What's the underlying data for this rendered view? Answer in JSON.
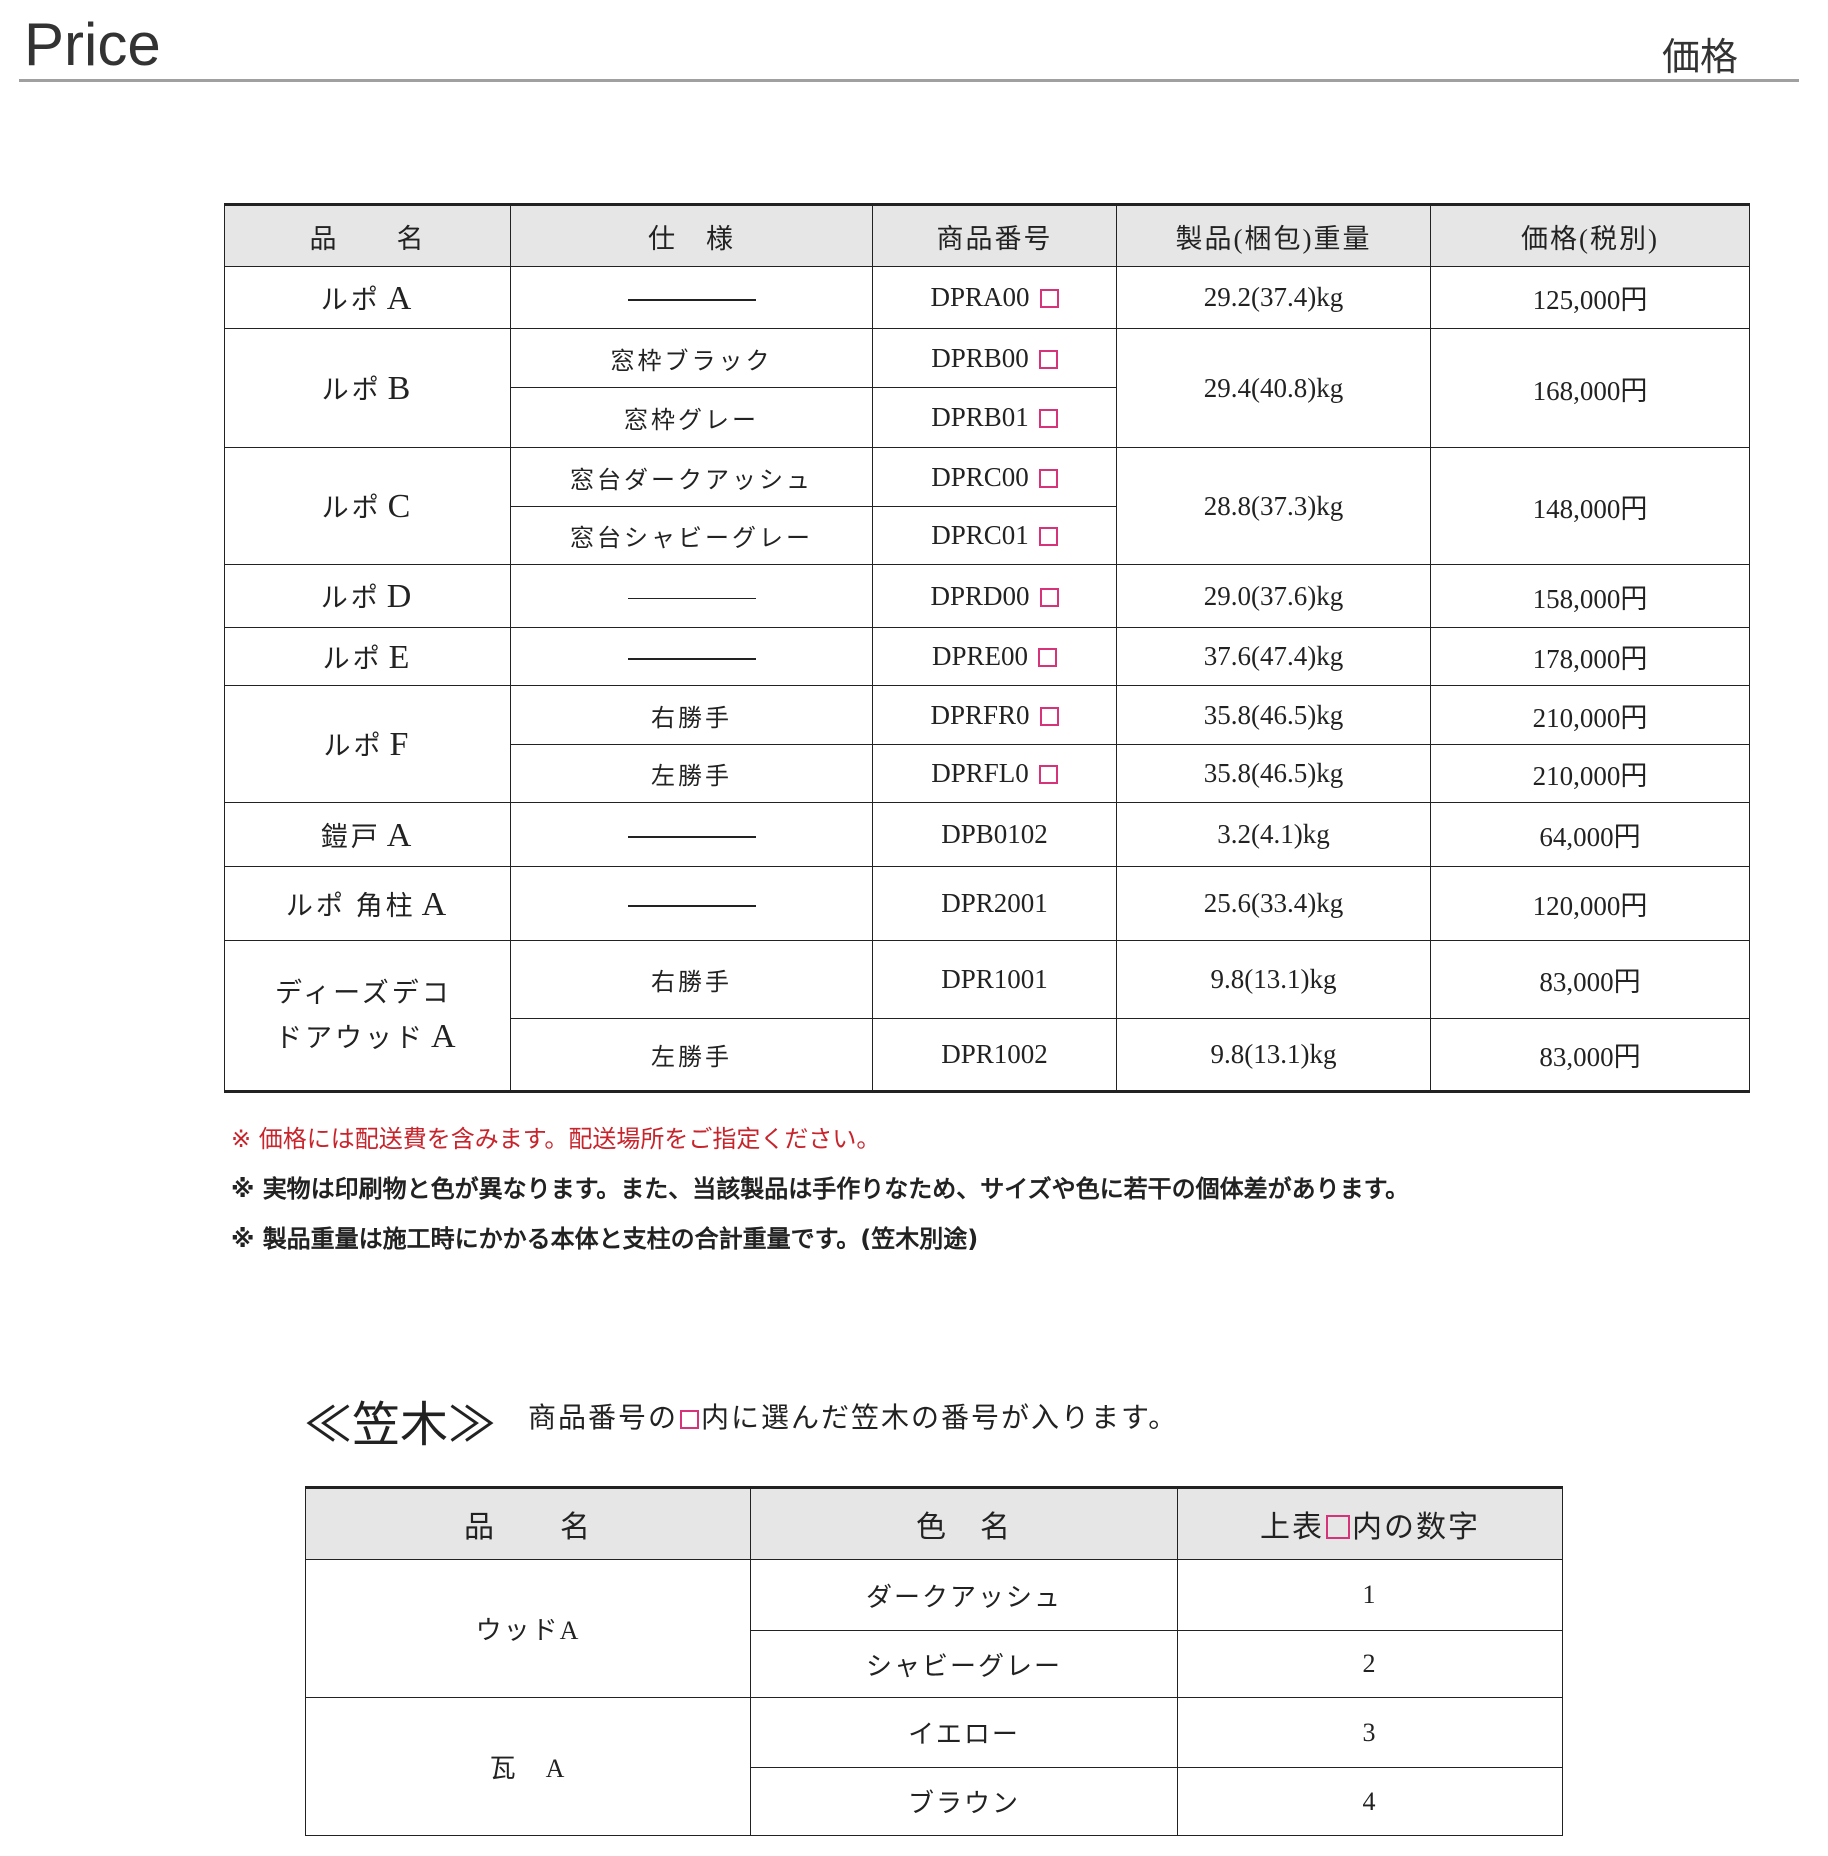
{
  "header": {
    "title": "Price",
    "title_jp": "価格"
  },
  "price_table": {
    "headers": [
      "品　　名",
      "仕　様",
      "商品番号",
      "製品(梱包)重量",
      "価格(税別)"
    ],
    "rows": [
      {
        "name": "ルポ",
        "letter": "A",
        "items": [
          {
            "spec": "",
            "code": "DPRA00",
            "box": true,
            "weight": "29.2(37.4)kg",
            "price": "125,000円"
          }
        ]
      },
      {
        "name": "ルポ",
        "letter": "B",
        "items": [
          {
            "spec": "窓枠ブラック",
            "code": "DPRB00",
            "box": true
          },
          {
            "spec": "窓枠グレー",
            "code": "DPRB01",
            "box": true
          }
        ],
        "weight": "29.4(40.8)kg",
        "price": "168,000円"
      },
      {
        "name": "ルポ",
        "letter": "C",
        "items": [
          {
            "spec": "窓台ダークアッシュ",
            "code": "DPRC00",
            "box": true
          },
          {
            "spec": "窓台シャビーグレー",
            "code": "DPRC01",
            "box": true
          }
        ],
        "weight": "28.8(37.3)kg",
        "price": "148,000円"
      },
      {
        "name": "ルポ",
        "letter": "D",
        "items": [
          {
            "spec": "",
            "code": "DPRD00",
            "box": true,
            "weight": "29.0(37.6)kg",
            "price": "158,000円"
          }
        ]
      },
      {
        "name": "ルポ",
        "letter": "E",
        "items": [
          {
            "spec": "",
            "code": "DPRE00",
            "box": true,
            "weight": "37.6(47.4)kg",
            "price": "178,000円"
          }
        ]
      },
      {
        "name": "ルポ",
        "letter": "F",
        "items": [
          {
            "spec": "右勝手",
            "code": "DPRFR0",
            "box": true,
            "weight": "35.8(46.5)kg",
            "price": "210,000円"
          },
          {
            "spec": "左勝手",
            "code": "DPRFL0",
            "box": true,
            "weight": "35.8(46.5)kg",
            "price": "210,000円"
          }
        ]
      },
      {
        "name": "鎧戸",
        "letter": "A",
        "items": [
          {
            "spec": "",
            "code": "DPB0102",
            "weight": "3.2(4.1)kg",
            "price": "64,000円"
          }
        ]
      },
      {
        "name": "ルポ 角柱",
        "letter": "A",
        "items": [
          {
            "spec": "",
            "code": "DPR2001",
            "weight": "25.6(33.4)kg",
            "price": "120,000円"
          }
        ]
      },
      {
        "name": "ディーズデコ",
        "name2": "ドアウッド",
        "letter": "A",
        "items": [
          {
            "spec": "右勝手",
            "code": "DPR1001",
            "weight": "9.8(13.1)kg",
            "price": "83,000円"
          },
          {
            "spec": "左勝手",
            "code": "DPR1002",
            "weight": "9.8(13.1)kg",
            "price": "83,000円"
          }
        ]
      }
    ]
  },
  "notes": [
    "※ 価格には配送費を含みます。配送場所をご指定ください。",
    "※ 実物は印刷物と色が異なります。また、当該製品は手作りなため、サイズや色に若干の個体差があります。",
    "※ 製品重量は施工時にかかる本体と支柱の合計重量です。(笠木別途)"
  ],
  "kasagi": {
    "title": "≪笠木≫",
    "note_before": "商品番号の",
    "note_after": "内に選んだ笠木の番号が入ります。",
    "headers": [
      "品　　名",
      "色　名",
      "上表",
      "内の数字"
    ],
    "rows": [
      {
        "name": "ウッドA",
        "colors": [
          {
            "color": "ダークアッシュ",
            "num": "1"
          },
          {
            "color": "シャビーグレー",
            "num": "2"
          }
        ]
      },
      {
        "name": "瓦　A",
        "colors": [
          {
            "color": "イエロー",
            "num": "3"
          },
          {
            "color": "ブラウン",
            "num": "4"
          }
        ]
      }
    ]
  },
  "colors": {
    "accent_box": "#d6337a",
    "note_red": "#c8242c",
    "header_bg": "#e6e6e6"
  }
}
